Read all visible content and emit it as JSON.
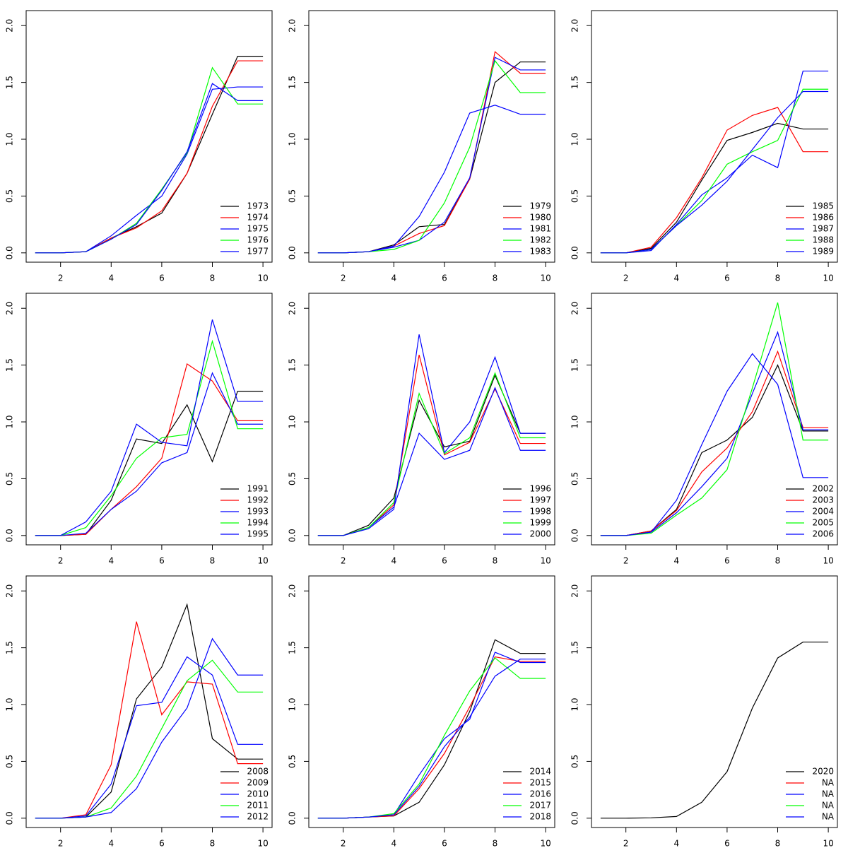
{
  "chart_data": [
    {
      "type": "line",
      "x": [
        1,
        2,
        3,
        4,
        5,
        6,
        7,
        8,
        9,
        10
      ],
      "xlim": [
        0.64,
        10.36
      ],
      "ylim": [
        -0.082,
        2.132
      ],
      "xticks": [
        2,
        4,
        6,
        8,
        10
      ],
      "yticks": [
        {
          "value": 0,
          "label": "0.0"
        },
        {
          "value": 0.5,
          "label": "0.5"
        },
        {
          "value": 1,
          "label": "1.0"
        },
        {
          "value": 1.5,
          "label": "1.5"
        },
        {
          "value": 2,
          "label": "2.0"
        }
      ],
      "legend": "bottomright",
      "series": [
        {
          "name": "1973",
          "color": "#000000",
          "values": [
            0,
            0,
            0.01,
            0.13,
            0.23,
            0.35,
            0.7,
            1.22,
            1.73,
            1.73
          ]
        },
        {
          "name": "1974",
          "color": "#ff0000",
          "values": [
            0,
            0,
            0.01,
            0.13,
            0.22,
            0.37,
            0.7,
            1.29,
            1.69,
            1.69
          ]
        },
        {
          "name": "1975",
          "color": "#0000ff",
          "values": [
            0,
            0,
            0.01,
            0.15,
            0.33,
            0.5,
            0.87,
            1.44,
            1.46,
            1.46
          ]
        },
        {
          "name": "1976",
          "color": "#00ff00",
          "values": [
            0,
            0,
            0.01,
            0.12,
            0.26,
            0.56,
            0.88,
            1.63,
            1.31,
            1.31
          ]
        },
        {
          "name": "1977",
          "color": "#0000ff",
          "values": [
            0,
            0,
            0.01,
            0.12,
            0.25,
            0.55,
            0.89,
            1.49,
            1.34,
            1.34
          ]
        }
      ]
    },
    {
      "type": "line",
      "x": [
        1,
        2,
        3,
        4,
        5,
        6,
        7,
        8,
        9,
        10
      ],
      "xlim": [
        0.64,
        10.36
      ],
      "ylim": [
        -0.082,
        2.132
      ],
      "xticks": [
        2,
        4,
        6,
        8,
        10
      ],
      "yticks": [
        {
          "value": 0,
          "label": "0.0"
        },
        {
          "value": 0.5,
          "label": "0.5"
        },
        {
          "value": 1,
          "label": "1.0"
        },
        {
          "value": 1.5,
          "label": "1.5"
        },
        {
          "value": 2,
          "label": "2.0"
        }
      ],
      "legend": "bottomright",
      "series": [
        {
          "name": "1979",
          "color": "#000000",
          "values": [
            0,
            0,
            0.01,
            0.07,
            0.23,
            0.25,
            0.65,
            1.5,
            1.68,
            1.68
          ]
        },
        {
          "name": "1980",
          "color": "#ff0000",
          "values": [
            0,
            0,
            0.01,
            0.06,
            0.17,
            0.24,
            0.65,
            1.77,
            1.58,
            1.58
          ]
        },
        {
          "name": "1981",
          "color": "#0000ff",
          "values": [
            0,
            0,
            0.01,
            0.05,
            0.11,
            0.27,
            0.66,
            1.72,
            1.61,
            1.61
          ]
        },
        {
          "name": "1982",
          "color": "#00ff00",
          "values": [
            0,
            0,
            0.01,
            0.03,
            0.11,
            0.44,
            0.93,
            1.69,
            1.41,
            1.41
          ]
        },
        {
          "name": "1983",
          "color": "#0000ff",
          "values": [
            0,
            0,
            0.01,
            0.06,
            0.32,
            0.71,
            1.23,
            1.3,
            1.22,
            1.22
          ]
        }
      ]
    },
    {
      "type": "line",
      "x": [
        1,
        2,
        3,
        4,
        5,
        6,
        7,
        8,
        9,
        10
      ],
      "xlim": [
        0.64,
        10.36
      ],
      "ylim": [
        -0.082,
        2.132
      ],
      "xticks": [
        2,
        4,
        6,
        8,
        10
      ],
      "yticks": [
        {
          "value": 0,
          "label": "0.0"
        },
        {
          "value": 0.5,
          "label": "0.5"
        },
        {
          "value": 1,
          "label": "1.0"
        },
        {
          "value": 1.5,
          "label": "1.5"
        },
        {
          "value": 2,
          "label": "2.0"
        }
      ],
      "legend": "bottomright",
      "series": [
        {
          "name": "1985",
          "color": "#000000",
          "values": [
            0,
            0,
            0.04,
            0.27,
            0.64,
            0.99,
            1.06,
            1.14,
            1.09,
            1.09
          ]
        },
        {
          "name": "1986",
          "color": "#ff0000",
          "values": [
            0,
            0,
            0.05,
            0.31,
            0.66,
            1.08,
            1.21,
            1.28,
            0.89,
            0.89
          ]
        },
        {
          "name": "1987",
          "color": "#0000ff",
          "values": [
            0,
            0,
            0.02,
            0.25,
            0.51,
            0.66,
            0.86,
            0.75,
            1.6,
            1.6
          ]
        },
        {
          "name": "1988",
          "color": "#00ff00",
          "values": [
            0,
            0,
            0.03,
            0.24,
            0.46,
            0.78,
            0.89,
            0.99,
            1.44,
            1.44
          ]
        },
        {
          "name": "1989",
          "color": "#0000ff",
          "values": [
            0,
            0,
            0.03,
            0.24,
            0.42,
            0.63,
            0.91,
            1.19,
            1.42,
            1.42
          ]
        }
      ]
    },
    {
      "type": "line",
      "x": [
        1,
        2,
        3,
        4,
        5,
        6,
        7,
        8,
        9,
        10
      ],
      "xlim": [
        0.64,
        10.36
      ],
      "ylim": [
        -0.082,
        2.132
      ],
      "xticks": [
        2,
        4,
        6,
        8,
        10
      ],
      "yticks": [
        {
          "value": 0,
          "label": "0.0"
        },
        {
          "value": 0.5,
          "label": "0.5"
        },
        {
          "value": 1,
          "label": "1.0"
        },
        {
          "value": 1.5,
          "label": "1.5"
        },
        {
          "value": 2,
          "label": "2.0"
        }
      ],
      "legend": "bottomright",
      "series": [
        {
          "name": "1991",
          "color": "#000000",
          "values": [
            0,
            0,
            0.01,
            0.31,
            0.85,
            0.81,
            1.15,
            0.65,
            1.27,
            1.27
          ]
        },
        {
          "name": "1992",
          "color": "#ff0000",
          "values": [
            0,
            0,
            0.01,
            0.23,
            0.43,
            0.68,
            1.51,
            1.36,
            1.01,
            1.01
          ]
        },
        {
          "name": "1993",
          "color": "#0000ff",
          "values": [
            0,
            0,
            0.02,
            0.23,
            0.39,
            0.64,
            0.73,
            1.43,
            0.98,
            0.98
          ]
        },
        {
          "name": "1994",
          "color": "#00ff00",
          "values": [
            0,
            0,
            0.07,
            0.35,
            0.68,
            0.86,
            0.89,
            1.71,
            0.94,
            0.94
          ]
        },
        {
          "name": "1995",
          "color": "#0000ff",
          "values": [
            0,
            0,
            0.12,
            0.39,
            0.98,
            0.82,
            0.79,
            1.9,
            1.18,
            1.18
          ]
        }
      ]
    },
    {
      "type": "line",
      "x": [
        1,
        2,
        3,
        4,
        5,
        6,
        7,
        8,
        9,
        10
      ],
      "xlim": [
        0.64,
        10.36
      ],
      "ylim": [
        -0.082,
        2.132
      ],
      "xticks": [
        2,
        4,
        6,
        8,
        10
      ],
      "yticks": [
        {
          "value": 0,
          "label": "0.0"
        },
        {
          "value": 0.5,
          "label": "0.5"
        },
        {
          "value": 1,
          "label": "1.0"
        },
        {
          "value": 1.5,
          "label": "1.5"
        },
        {
          "value": 2,
          "label": "2.0"
        }
      ],
      "legend": "bottomright",
      "series": [
        {
          "name": "1996",
          "color": "#000000",
          "values": [
            0,
            0,
            0.09,
            0.33,
            1.19,
            0.78,
            0.83,
            1.41,
            0.9,
            0.9
          ]
        },
        {
          "name": "1997",
          "color": "#ff0000",
          "values": [
            0,
            0,
            0.07,
            0.27,
            1.59,
            0.71,
            0.82,
            1.29,
            0.81,
            0.81
          ]
        },
        {
          "name": "1998",
          "color": "#0000ff",
          "values": [
            0,
            0,
            0.07,
            0.25,
            0.9,
            0.67,
            0.75,
            1.3,
            0.75,
            0.75
          ]
        },
        {
          "name": "1999",
          "color": "#00ff00",
          "values": [
            0,
            0,
            0.07,
            0.29,
            1.25,
            0.72,
            0.86,
            1.43,
            0.86,
            0.86
          ]
        },
        {
          "name": "2000",
          "color": "#0000ff",
          "values": [
            0,
            0,
            0.06,
            0.23,
            1.77,
            0.73,
            1.0,
            1.57,
            0.9,
            0.9
          ]
        }
      ]
    },
    {
      "type": "line",
      "x": [
        1,
        2,
        3,
        4,
        5,
        6,
        7,
        8,
        9,
        10
      ],
      "xlim": [
        0.64,
        10.36
      ],
      "ylim": [
        -0.082,
        2.132
      ],
      "xticks": [
        2,
        4,
        6,
        8,
        10
      ],
      "yticks": [
        {
          "value": 0,
          "label": "0.0"
        },
        {
          "value": 0.5,
          "label": "0.5"
        },
        {
          "value": 1,
          "label": "1.0"
        },
        {
          "value": 1.5,
          "label": "1.5"
        },
        {
          "value": 2,
          "label": "2.0"
        }
      ],
      "legend": "bottomright",
      "series": [
        {
          "name": "2002",
          "color": "#000000",
          "values": [
            0,
            0,
            0.04,
            0.23,
            0.73,
            0.84,
            1.04,
            1.5,
            0.92,
            0.92
          ]
        },
        {
          "name": "2003",
          "color": "#ff0000",
          "values": [
            0,
            0,
            0.04,
            0.22,
            0.56,
            0.77,
            1.09,
            1.62,
            0.95,
            0.95
          ]
        },
        {
          "name": "2004",
          "color": "#0000ff",
          "values": [
            0,
            0,
            0.03,
            0.2,
            0.43,
            0.68,
            1.25,
            1.79,
            0.93,
            0.93
          ]
        },
        {
          "name": "2005",
          "color": "#00ff00",
          "values": [
            0,
            0,
            0.02,
            0.18,
            0.33,
            0.58,
            1.3,
            2.05,
            0.84,
            0.84
          ]
        },
        {
          "name": "2006",
          "color": "#0000ff",
          "values": [
            0,
            0,
            0.03,
            0.31,
            0.8,
            1.27,
            1.6,
            1.33,
            0.51,
            0.51
          ]
        }
      ]
    },
    {
      "type": "line",
      "x": [
        1,
        2,
        3,
        4,
        5,
        6,
        7,
        8,
        9,
        10
      ],
      "xlim": [
        0.64,
        10.36
      ],
      "ylim": [
        -0.082,
        2.132
      ],
      "xticks": [
        2,
        4,
        6,
        8,
        10
      ],
      "yticks": [
        {
          "value": 0,
          "label": "0.0"
        },
        {
          "value": 0.5,
          "label": "0.5"
        },
        {
          "value": 1,
          "label": "1.0"
        },
        {
          "value": 1.5,
          "label": "1.5"
        },
        {
          "value": 2,
          "label": "2.0"
        }
      ],
      "legend": "bottomright",
      "series": [
        {
          "name": "2008",
          "color": "#000000",
          "values": [
            0,
            0,
            0.01,
            0.23,
            1.05,
            1.33,
            1.88,
            0.7,
            0.52,
            0.52
          ]
        },
        {
          "name": "2009",
          "color": "#ff0000",
          "values": [
            0,
            0,
            0.03,
            0.47,
            1.73,
            0.91,
            1.2,
            1.18,
            0.48,
            0.48
          ]
        },
        {
          "name": "2010",
          "color": "#0000ff",
          "values": [
            0,
            0,
            0.02,
            0.3,
            0.99,
            1.02,
            1.42,
            1.26,
            0.65,
            0.65
          ]
        },
        {
          "name": "2011",
          "color": "#00ff00",
          "values": [
            0,
            0,
            0.01,
            0.09,
            0.37,
            0.79,
            1.21,
            1.39,
            1.11,
            1.11
          ]
        },
        {
          "name": "2012",
          "color": "#0000ff",
          "values": [
            0,
            0,
            0.01,
            0.05,
            0.26,
            0.67,
            0.97,
            1.58,
            1.26,
            1.26
          ]
        }
      ]
    },
    {
      "type": "line",
      "x": [
        1,
        2,
        3,
        4,
        5,
        6,
        7,
        8,
        9,
        10
      ],
      "xlim": [
        0.64,
        10.36
      ],
      "ylim": [
        -0.082,
        2.132
      ],
      "xticks": [
        2,
        4,
        6,
        8,
        10
      ],
      "yticks": [
        {
          "value": 0,
          "label": "0.0"
        },
        {
          "value": 0.5,
          "label": "0.5"
        },
        {
          "value": 1,
          "label": "1.0"
        },
        {
          "value": 1.5,
          "label": "1.5"
        },
        {
          "value": 2,
          "label": "2.0"
        }
      ],
      "legend": "bottomright",
      "series": [
        {
          "name": "2014",
          "color": "#000000",
          "values": [
            0,
            0,
            0.01,
            0.02,
            0.14,
            0.47,
            0.94,
            1.57,
            1.45,
            1.45
          ]
        },
        {
          "name": "2015",
          "color": "#ff0000",
          "values": [
            0,
            0,
            0.01,
            0.02,
            0.26,
            0.57,
            0.98,
            1.42,
            1.38,
            1.38
          ]
        },
        {
          "name": "2016",
          "color": "#0000ff",
          "values": [
            0,
            0,
            0.01,
            0.03,
            0.38,
            0.7,
            0.87,
            1.46,
            1.37,
            1.37
          ]
        },
        {
          "name": "2017",
          "color": "#00ff00",
          "values": [
            0,
            0,
            0.01,
            0.04,
            0.3,
            0.73,
            1.12,
            1.41,
            1.23,
            1.23
          ]
        },
        {
          "name": "2018",
          "color": "#0000ff",
          "values": [
            0,
            0,
            0.01,
            0.03,
            0.28,
            0.63,
            0.89,
            1.25,
            1.4,
            1.4
          ]
        }
      ]
    },
    {
      "type": "line",
      "x": [
        1,
        2,
        3,
        4,
        5,
        6,
        7,
        8,
        9,
        10
      ],
      "xlim": [
        0.64,
        10.36
      ],
      "ylim": [
        -0.082,
        2.132
      ],
      "xticks": [
        2,
        4,
        6,
        8,
        10
      ],
      "yticks": [
        {
          "value": 0,
          "label": "0.0"
        },
        {
          "value": 0.5,
          "label": "0.5"
        },
        {
          "value": 1,
          "label": "1.0"
        },
        {
          "value": 1.5,
          "label": "1.5"
        },
        {
          "value": 2,
          "label": "2.0"
        }
      ],
      "legend": "bottomright",
      "series": [
        {
          "name": "2020",
          "color": "#000000",
          "values": [
            0,
            0,
            0.003,
            0.015,
            0.14,
            0.41,
            0.97,
            1.41,
            1.55,
            1.55
          ]
        },
        {
          "name": "NA",
          "color": "#ff0000",
          "values": [
            null,
            null,
            null,
            null,
            null,
            null,
            null,
            null,
            null,
            null
          ]
        },
        {
          "name": "NA",
          "color": "#0000ff",
          "values": [
            null,
            null,
            null,
            null,
            null,
            null,
            null,
            null,
            null,
            null
          ]
        },
        {
          "name": "NA",
          "color": "#00ff00",
          "values": [
            null,
            null,
            null,
            null,
            null,
            null,
            null,
            null,
            null,
            null
          ]
        },
        {
          "name": "NA",
          "color": "#0000ff",
          "values": [
            null,
            null,
            null,
            null,
            null,
            null,
            null,
            null,
            null,
            null
          ]
        }
      ]
    }
  ]
}
